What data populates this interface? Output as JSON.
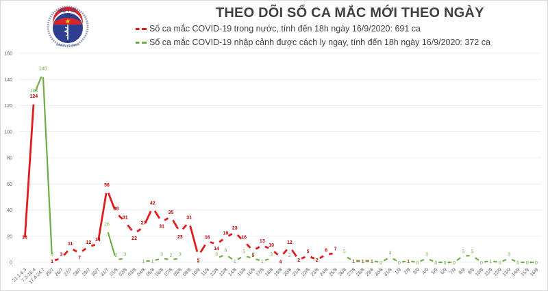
{
  "header": {
    "title": "THEO DÕI SỐ CA MẮC MỚI THEO NGÀY",
    "logo_text_top": "BỘ Y TẾ",
    "logo_text_bottom": "MINISTRY OF HEALTH",
    "legend": [
      {
        "label": "Số ca mắc COVID-19 trong nước, tính đến 18h ngày 16/9/2020: 691 ca",
        "color": "#e31a1c"
      },
      {
        "label": "Số ca mắc COVID-19 nhập cảnh được cách ly ngay, tính đến 18h ngày 16/9/2020: 372 ca",
        "color": "#70ad47"
      }
    ]
  },
  "colors": {
    "domestic": "#e31a1c",
    "imported": "#70ad47",
    "grid": "#e6e6e6",
    "axis_text": "#595959"
  },
  "chart_data": {
    "type": "line",
    "title": "THEO DÕI SỐ CA MẮC MỚI THEO NGÀY",
    "xlabel": "",
    "ylabel": "",
    "ylim": [
      0,
      160
    ],
    "yticks": [
      0,
      20,
      40,
      60,
      80,
      100,
      120,
      140,
      160
    ],
    "grid": true,
    "legend_position": "top",
    "categories": [
      "21.1-6.3",
      "7.3-16.4",
      "17.4-24.7",
      "25/7",
      "26/7",
      "27/7",
      "28/7",
      "29/7",
      "30/7",
      "31/7",
      "01/8",
      "02/8",
      "03/8",
      "04/8",
      "05/8",
      "06/8",
      "07/8",
      "08/8",
      "09/8",
      "10/8",
      "11/8",
      "12/8",
      "13/8",
      "14/8",
      "15/8",
      "16/8",
      "17/8",
      "18/8",
      "19/8",
      "20/8",
      "21/8",
      "22/8",
      "23/8",
      "24/8",
      "25/8",
      "26/8",
      "27/8",
      "28/8",
      "29/8",
      "30/8",
      "31/8",
      "1/9",
      "2/9",
      "3/9",
      "4/9",
      "5/9",
      "6/9",
      "7/9",
      "8/9",
      "9/9",
      "10/9",
      "11/9",
      "12/9",
      "13/9",
      "14/9",
      "15/9",
      "16/9"
    ],
    "series": [
      {
        "name": "Số ca mắc COVID-19 trong nước, tính đến 18h ngày 16/9/2020: 691 ca",
        "color": "#e31a1c",
        "values": [
          16,
          124,
          null,
          1,
          3,
          11,
          7,
          12,
          14,
          56,
          38,
          31,
          22,
          27,
          42,
          31,
          35,
          23,
          31,
          5,
          16,
          14,
          19,
          23,
          16,
          9,
          13,
          10,
          4,
          12,
          2,
          5,
          2,
          6,
          7,
          null,
          1,
          1,
          1,
          null,
          null,
          null,
          1,
          null,
          null,
          null,
          null,
          null,
          null,
          null,
          null,
          null,
          null,
          null,
          null,
          null,
          null
        ]
      },
      {
        "name": "Số ca mắc COVID-19 nhập cảnh được cách ly ngay, tính đến 18h ngày 16/9/2020: 372 ca",
        "color": "#70ad47",
        "values": [
          null,
          128,
          145,
          3,
          null,
          null,
          null,
          null,
          null,
          26,
          2,
          3,
          null,
          1,
          1,
          3,
          2,
          3,
          null,
          1,
          null,
          3,
          6,
          1,
          5,
          3,
          1,
          3,
          null,
          2,
          null,
          null,
          null,
          null,
          null,
          5,
          1,
          1,
          1,
          0,
          4,
          0,
          1,
          0,
          3,
          0,
          0,
          0,
          5,
          5,
          0,
          1,
          0,
          3,
          0,
          0,
          0
        ]
      }
    ]
  }
}
